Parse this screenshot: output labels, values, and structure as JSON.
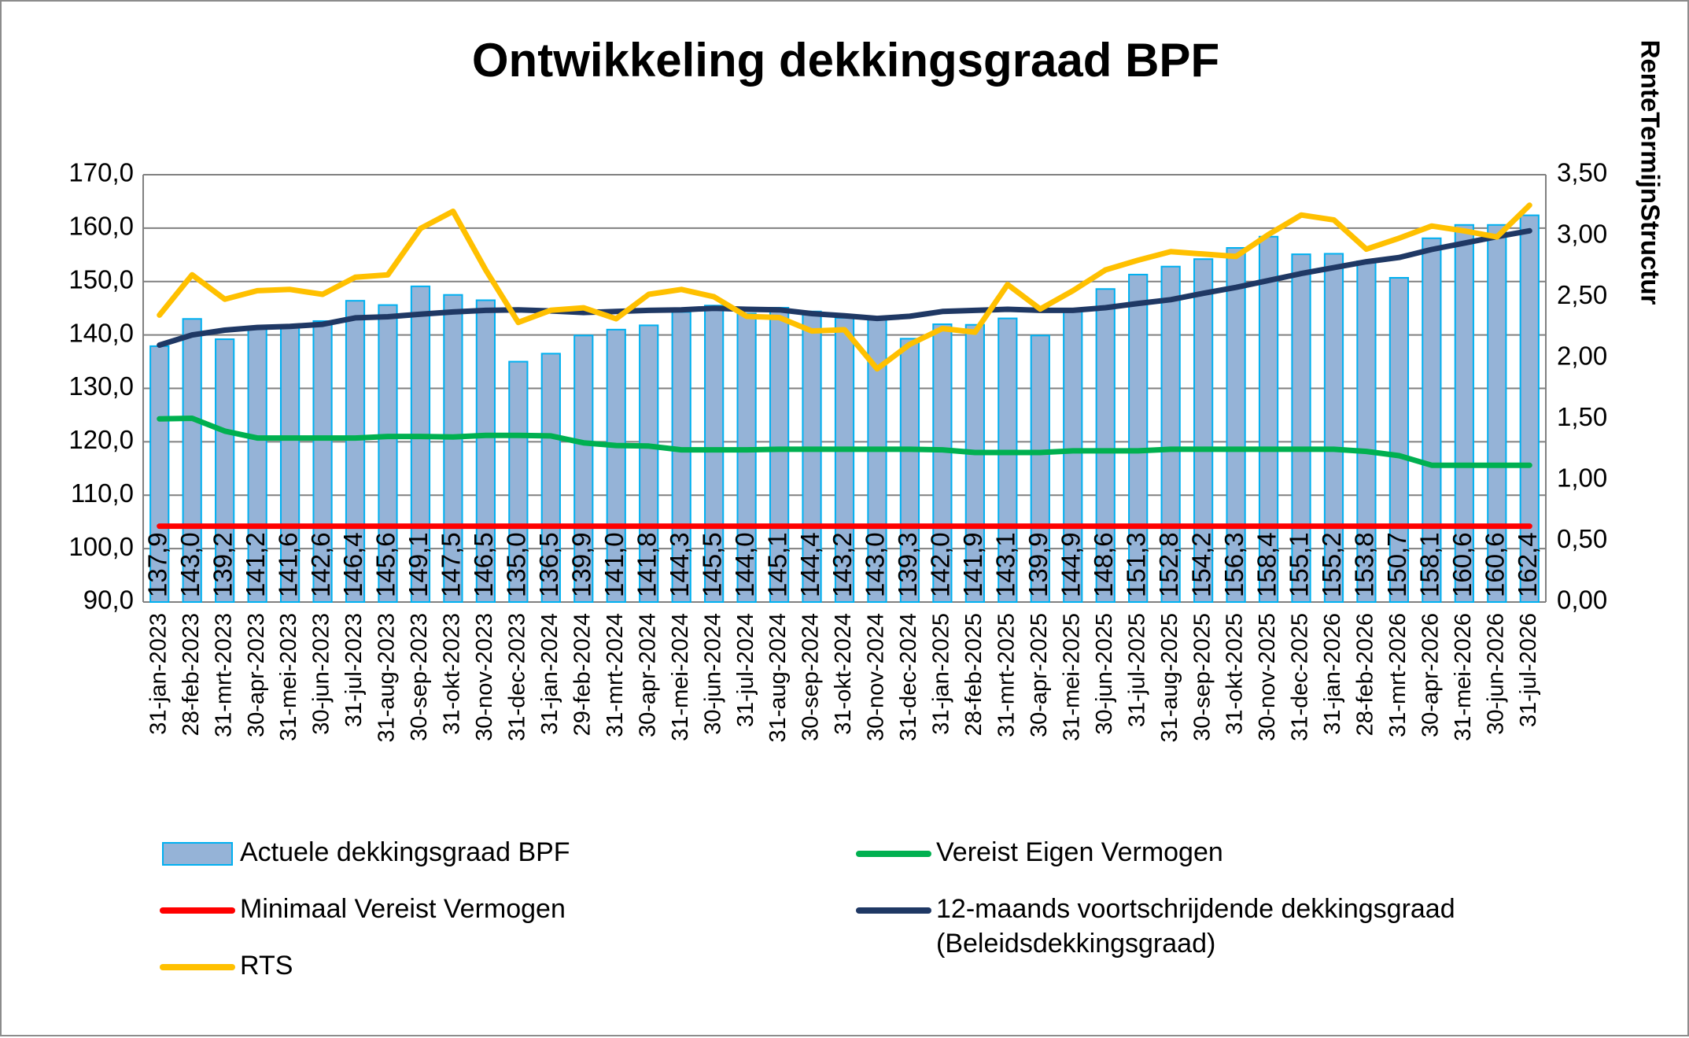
{
  "chart_data": {
    "type": "bar",
    "title": "Ontwikkeling dekkingsgraad BPF",
    "xlabel": "",
    "ylabel": "",
    "y2label": "RenteTermijnStructur",
    "ylim": [
      90,
      170
    ],
    "ystep": 10,
    "y2lim": [
      0,
      3.5
    ],
    "y2step": 0.5,
    "grid": true,
    "legend_position": "bottom",
    "categories": [
      "31-jan-2023",
      "28-feb-2023",
      "31-mrt-2023",
      "30-apr-2023",
      "31-mei-2023",
      "30-jun-2023",
      "31-jul-2023",
      "31-aug-2023",
      "30-sep-2023",
      "31-okt-2023",
      "30-nov-2023",
      "31-dec-2023",
      "31-jan-2024",
      "29-feb-2024",
      "31-mrt-2024",
      "30-apr-2024",
      "31-mei-2024",
      "30-jun-2024",
      "31-jul-2024",
      "31-aug-2024",
      "30-sep-2024",
      "31-okt-2024",
      "30-nov-2024",
      "31-dec-2024",
      "31-jan-2025",
      "28-feb-2025",
      "31-mrt-2025",
      "30-apr-2025",
      "31-mei-2025",
      "30-jun-2025",
      "31-jul-2025",
      "31-aug-2025",
      "30-sep-2025",
      "31-okt-2025",
      "30-nov-2025",
      "31-dec-2025",
      "31-jan-2026",
      "28-feb-2026",
      "31-mrt-2026",
      "30-apr-2026",
      "31-mei-2026",
      "30-jun-2026",
      "31-jul-2026"
    ],
    "series": [
      {
        "name": "Actuele dekkingsgraad BPF",
        "kind": "bar",
        "axis": "left",
        "color": "#95b3d7",
        "edge_color": "#00b0f0",
        "values": [
          137.9,
          143.0,
          139.2,
          141.2,
          141.6,
          142.6,
          146.4,
          145.6,
          149.1,
          147.5,
          146.5,
          135.0,
          136.5,
          139.9,
          141.0,
          141.8,
          144.3,
          145.5,
          144.0,
          145.1,
          144.4,
          143.2,
          143.0,
          139.3,
          142.0,
          141.9,
          143.1,
          139.9,
          144.9,
          148.6,
          151.3,
          152.8,
          154.2,
          156.3,
          158.4,
          155.1,
          155.2,
          153.8,
          150.7,
          158.1,
          160.6,
          160.6,
          162.4
        ],
        "labels": [
          "137,9",
          "143,0",
          "139,2",
          "141,2",
          "141,6",
          "142,6",
          "146,4",
          "145,6",
          "149,1",
          "147,5",
          "146,5",
          "135,0",
          "136,5",
          "139,9",
          "141,0",
          "141,8",
          "144,3",
          "145,5",
          "144,0",
          "145,1",
          "144,4",
          "143,2",
          "143,0",
          "139,3",
          "142,0",
          "141,9",
          "143,1",
          "139,9",
          "144,9",
          "148,6",
          "151,3",
          "152,8",
          "154,2",
          "156,3",
          "158,4",
          "155,1",
          "155,2",
          "153,8",
          "150,7",
          "158,1",
          "160,6",
          "160,6",
          "162,4"
        ]
      },
      {
        "name": "Vereist Eigen Vermogen",
        "kind": "line",
        "axis": "left",
        "color": "#00b050",
        "values": [
          124.3,
          124.4,
          122.0,
          120.7,
          120.7,
          120.7,
          120.7,
          121.0,
          121.0,
          120.9,
          121.2,
          121.2,
          121.1,
          119.8,
          119.3,
          119.2,
          118.5,
          118.5,
          118.5,
          118.6,
          118.6,
          118.6,
          118.6,
          118.6,
          118.5,
          118.0,
          118.0,
          118.0,
          118.3,
          118.3,
          118.3,
          118.6,
          118.6,
          118.6,
          118.6,
          118.6,
          118.6,
          118.2,
          117.4,
          115.6,
          115.6,
          115.6,
          115.6
        ]
      },
      {
        "name": "Minimaal Vereist Vermogen",
        "kind": "line",
        "axis": "left",
        "color": "#ff0000",
        "values": [
          104.2,
          104.2,
          104.2,
          104.2,
          104.2,
          104.2,
          104.2,
          104.2,
          104.2,
          104.2,
          104.2,
          104.2,
          104.2,
          104.2,
          104.2,
          104.2,
          104.2,
          104.2,
          104.2,
          104.2,
          104.2,
          104.2,
          104.2,
          104.2,
          104.2,
          104.2,
          104.2,
          104.2,
          104.2,
          104.2,
          104.2,
          104.2,
          104.2,
          104.2,
          104.2,
          104.2,
          104.2,
          104.2,
          104.2,
          104.2,
          104.2,
          104.2,
          104.2
        ]
      },
      {
        "name": "12-maands voortschrijdende dekkingsgraad (Beleidsdekkingsgraad)",
        "legend_lines": [
          "12-maands voortschrijdende dekkingsgraad",
          "(Beleidsdekkingsgraad)"
        ],
        "kind": "line",
        "axis": "left",
        "color": "#1f3864",
        "values": [
          138.1,
          140.0,
          140.9,
          141.4,
          141.6,
          142.0,
          143.2,
          143.4,
          143.9,
          144.3,
          144.6,
          144.7,
          144.5,
          144.2,
          144.4,
          144.6,
          144.7,
          145.0,
          144.8,
          144.7,
          144.0,
          143.6,
          143.1,
          143.5,
          144.4,
          144.6,
          144.8,
          144.6,
          144.6,
          145.1,
          145.9,
          146.6,
          147.8,
          148.9,
          150.2,
          151.5,
          152.6,
          153.7,
          154.5,
          156.0,
          157.2,
          158.4,
          159.5
        ]
      },
      {
        "name": "RTS",
        "kind": "line",
        "axis": "right",
        "color": "#ffc000",
        "values": [
          2.35,
          2.68,
          2.48,
          2.55,
          2.56,
          2.52,
          2.66,
          2.68,
          3.06,
          3.2,
          2.72,
          2.29,
          2.39,
          2.41,
          2.32,
          2.52,
          2.56,
          2.5,
          2.34,
          2.33,
          2.22,
          2.23,
          1.91,
          2.11,
          2.24,
          2.21,
          2.6,
          2.4,
          2.55,
          2.72,
          2.8,
          2.87,
          2.85,
          2.83,
          3.01,
          3.17,
          3.13,
          2.89,
          2.98,
          3.08,
          3.04,
          2.99,
          3.25
        ]
      }
    ]
  }
}
